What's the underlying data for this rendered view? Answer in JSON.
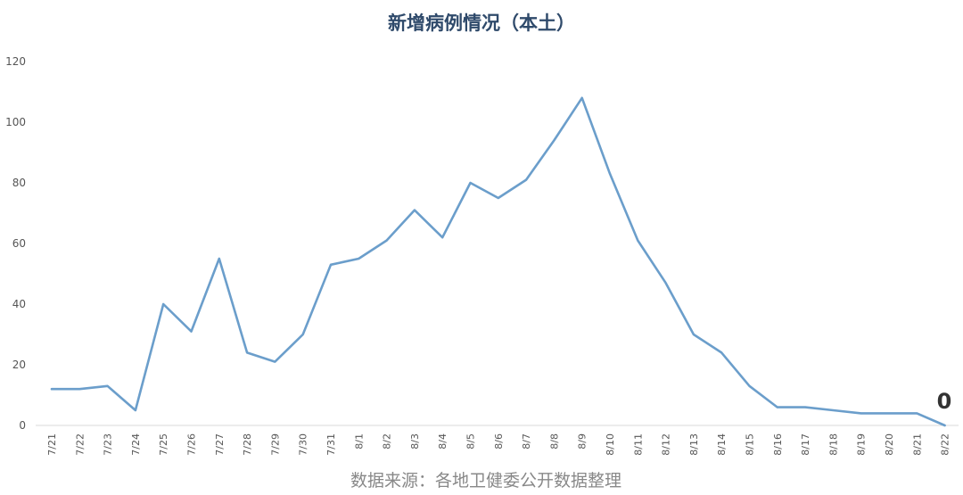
{
  "chart_data": {
    "type": "line",
    "title": "新增病例情况（本土）",
    "xlabel": "",
    "ylabel": "",
    "categories": [
      "7/21",
      "7/22",
      "7/23",
      "7/24",
      "7/25",
      "7/26",
      "7/27",
      "7/28",
      "7/29",
      "7/30",
      "7/31",
      "8/1",
      "8/2",
      "8/3",
      "8/4",
      "8/5",
      "8/6",
      "8/7",
      "8/8",
      "8/9",
      "8/10",
      "8/11",
      "8/12",
      "8/13",
      "8/14",
      "8/15",
      "8/16",
      "8/17",
      "8/18",
      "8/19",
      "8/20",
      "8/21",
      "8/22"
    ],
    "series": [
      {
        "values": [
          12,
          12,
          13,
          5,
          40,
          31,
          55,
          24,
          21,
          30,
          53,
          55,
          61,
          71,
          62,
          80,
          75,
          81,
          94,
          108,
          83,
          61,
          47,
          30,
          24,
          13,
          6,
          6,
          5,
          4,
          4,
          4,
          0
        ]
      }
    ],
    "ylim": [
      0,
      120
    ],
    "yticks": [
      "0",
      "20",
      "40",
      "60",
      "80",
      "100",
      "120"
    ],
    "grid": false,
    "legend": "none",
    "end_label": "0",
    "line_color": "#6b9ecb"
  },
  "source_note": "数据来源：各地卫健委公开数据整理"
}
